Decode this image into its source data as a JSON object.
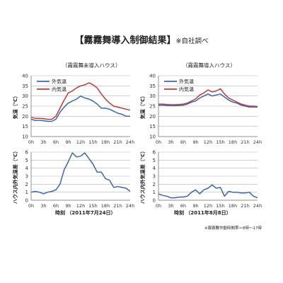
{
  "header": {
    "title": "【霧霧舞導入制御結果】",
    "note": "※自社調べ"
  },
  "footnote": "※霧霧舞作動時間帯＝8時～17時",
  "colors": {
    "outside": "#3b67b0",
    "inside": "#c0393b",
    "diff": "#3b67b0",
    "grid": "#b5b5b5",
    "axis": "#777777"
  },
  "chart_data": [
    {
      "type": "line",
      "title": "（霧霧舞未導入ハウス）",
      "ylabel": "気温（℃）",
      "ylim": [
        10,
        40
      ],
      "yticks": [
        10,
        15,
        20,
        25,
        30,
        35,
        40
      ],
      "categories": [
        "0h",
        "3h",
        "6h",
        "9h",
        "12h",
        "15h",
        "18h",
        "21h",
        "24h"
      ],
      "x": [
        0,
        1,
        2,
        3,
        4,
        5,
        6,
        7,
        8,
        9,
        10,
        11,
        12,
        13,
        14,
        15,
        16,
        17,
        18,
        19,
        20,
        21,
        22,
        23,
        24
      ],
      "legend": "top-left",
      "series": [
        {
          "name": "外気温",
          "values": [
            18.5,
            18,
            18,
            17.8,
            17.5,
            17.5,
            18.5,
            22,
            24.5,
            26.5,
            27.5,
            28.5,
            30,
            29,
            28.5,
            27.5,
            26,
            24,
            24,
            23.5,
            22.5,
            21.5,
            21,
            20,
            20
          ]
        },
        {
          "name": "内気温",
          "values": [
            19.5,
            19,
            19,
            18.8,
            18.5,
            18.5,
            20,
            24,
            28,
            31.5,
            32.5,
            34,
            35,
            35.5,
            36.5,
            35.5,
            34,
            31,
            28.5,
            26.5,
            25,
            24.5,
            24,
            23.5,
            23
          ]
        }
      ]
    },
    {
      "type": "line",
      "title": "（霧霧舞導入ハウス）",
      "ylabel": "気温（℃）",
      "ylim": [
        10,
        40
      ],
      "yticks": [
        10,
        15,
        20,
        25,
        30,
        35,
        40
      ],
      "categories": [
        "0h",
        "3h",
        "6h",
        "9h",
        "12h",
        "15h",
        "18h",
        "21h",
        "24h"
      ],
      "x": [
        0,
        1,
        2,
        3,
        4,
        5,
        6,
        7,
        8,
        9,
        10,
        11,
        12,
        13,
        14,
        15,
        16,
        17,
        18,
        19,
        20,
        21,
        22,
        23,
        24
      ],
      "legend": "top-left",
      "series": [
        {
          "name": "外気温",
          "values": [
            25.5,
            25.5,
            25.3,
            25.2,
            25.2,
            25.3,
            25.5,
            26,
            27,
            27.5,
            29,
            30,
            31,
            30,
            30.5,
            31,
            29.5,
            28,
            27,
            26.5,
            25.5,
            25,
            24.5,
            24.5,
            24.5
          ]
        },
        {
          "name": "内気温",
          "values": [
            26,
            26,
            25.8,
            25.7,
            25.7,
            25.8,
            26,
            26.5,
            27.5,
            28.5,
            30.5,
            31.5,
            33,
            32,
            32.5,
            33.5,
            31,
            29,
            28,
            27,
            26,
            25.5,
            25,
            25,
            24.8
          ]
        }
      ]
    },
    {
      "type": "line",
      "ylabel": "ハウス内外気温差（℃）",
      "xlabel": "時刻 （2011年7月24日）",
      "ylim": [
        0,
        6
      ],
      "yticks": [
        0,
        1,
        2,
        3,
        4,
        5,
        6
      ],
      "categories": [
        "0h",
        "3h",
        "6h",
        "9h",
        "12h",
        "15h",
        "18h",
        "21h",
        "24h"
      ],
      "x": [
        0,
        1,
        2,
        3,
        4,
        5,
        6,
        7,
        8,
        9,
        10,
        11,
        12,
        13,
        14,
        15,
        16,
        17,
        18,
        19,
        20,
        21,
        22,
        23,
        24
      ],
      "series": [
        {
          "name": "",
          "values": [
            1.0,
            1.1,
            1.0,
            0.8,
            1.0,
            1.1,
            1.3,
            2.0,
            3.8,
            4.8,
            5.9,
            5.4,
            5.5,
            5.9,
            5.2,
            4.5,
            3.5,
            3.5,
            2.7,
            2.5,
            1.6,
            1.7,
            1.6,
            1.5,
            1.1
          ]
        }
      ]
    },
    {
      "type": "line",
      "ylabel": "ハウス内外気温差（℃）",
      "xlabel": "時刻 （2011年8月8日）",
      "ylim": [
        0,
        6
      ],
      "yticks": [
        0,
        1,
        2,
        3,
        4,
        5,
        6
      ],
      "categories": [
        "0h",
        "3h",
        "6h",
        "9h",
        "12h",
        "15h",
        "18h",
        "21h",
        "24h"
      ],
      "x": [
        0,
        1,
        2,
        3,
        4,
        5,
        6,
        7,
        8,
        9,
        10,
        11,
        12,
        13,
        14,
        15,
        16,
        17,
        18,
        19,
        20,
        21,
        22,
        23,
        24
      ],
      "series": [
        {
          "name": "",
          "values": [
            0.8,
            0.6,
            0.5,
            0.3,
            0.3,
            0.4,
            0.4,
            0.5,
            1.0,
            1.3,
            0.8,
            1.3,
            1.5,
            1.9,
            1.5,
            1.6,
            0.5,
            1.1,
            1.0,
            1.0,
            0.9,
            0.9,
            1.0,
            0.5,
            0.3
          ]
        }
      ]
    }
  ]
}
